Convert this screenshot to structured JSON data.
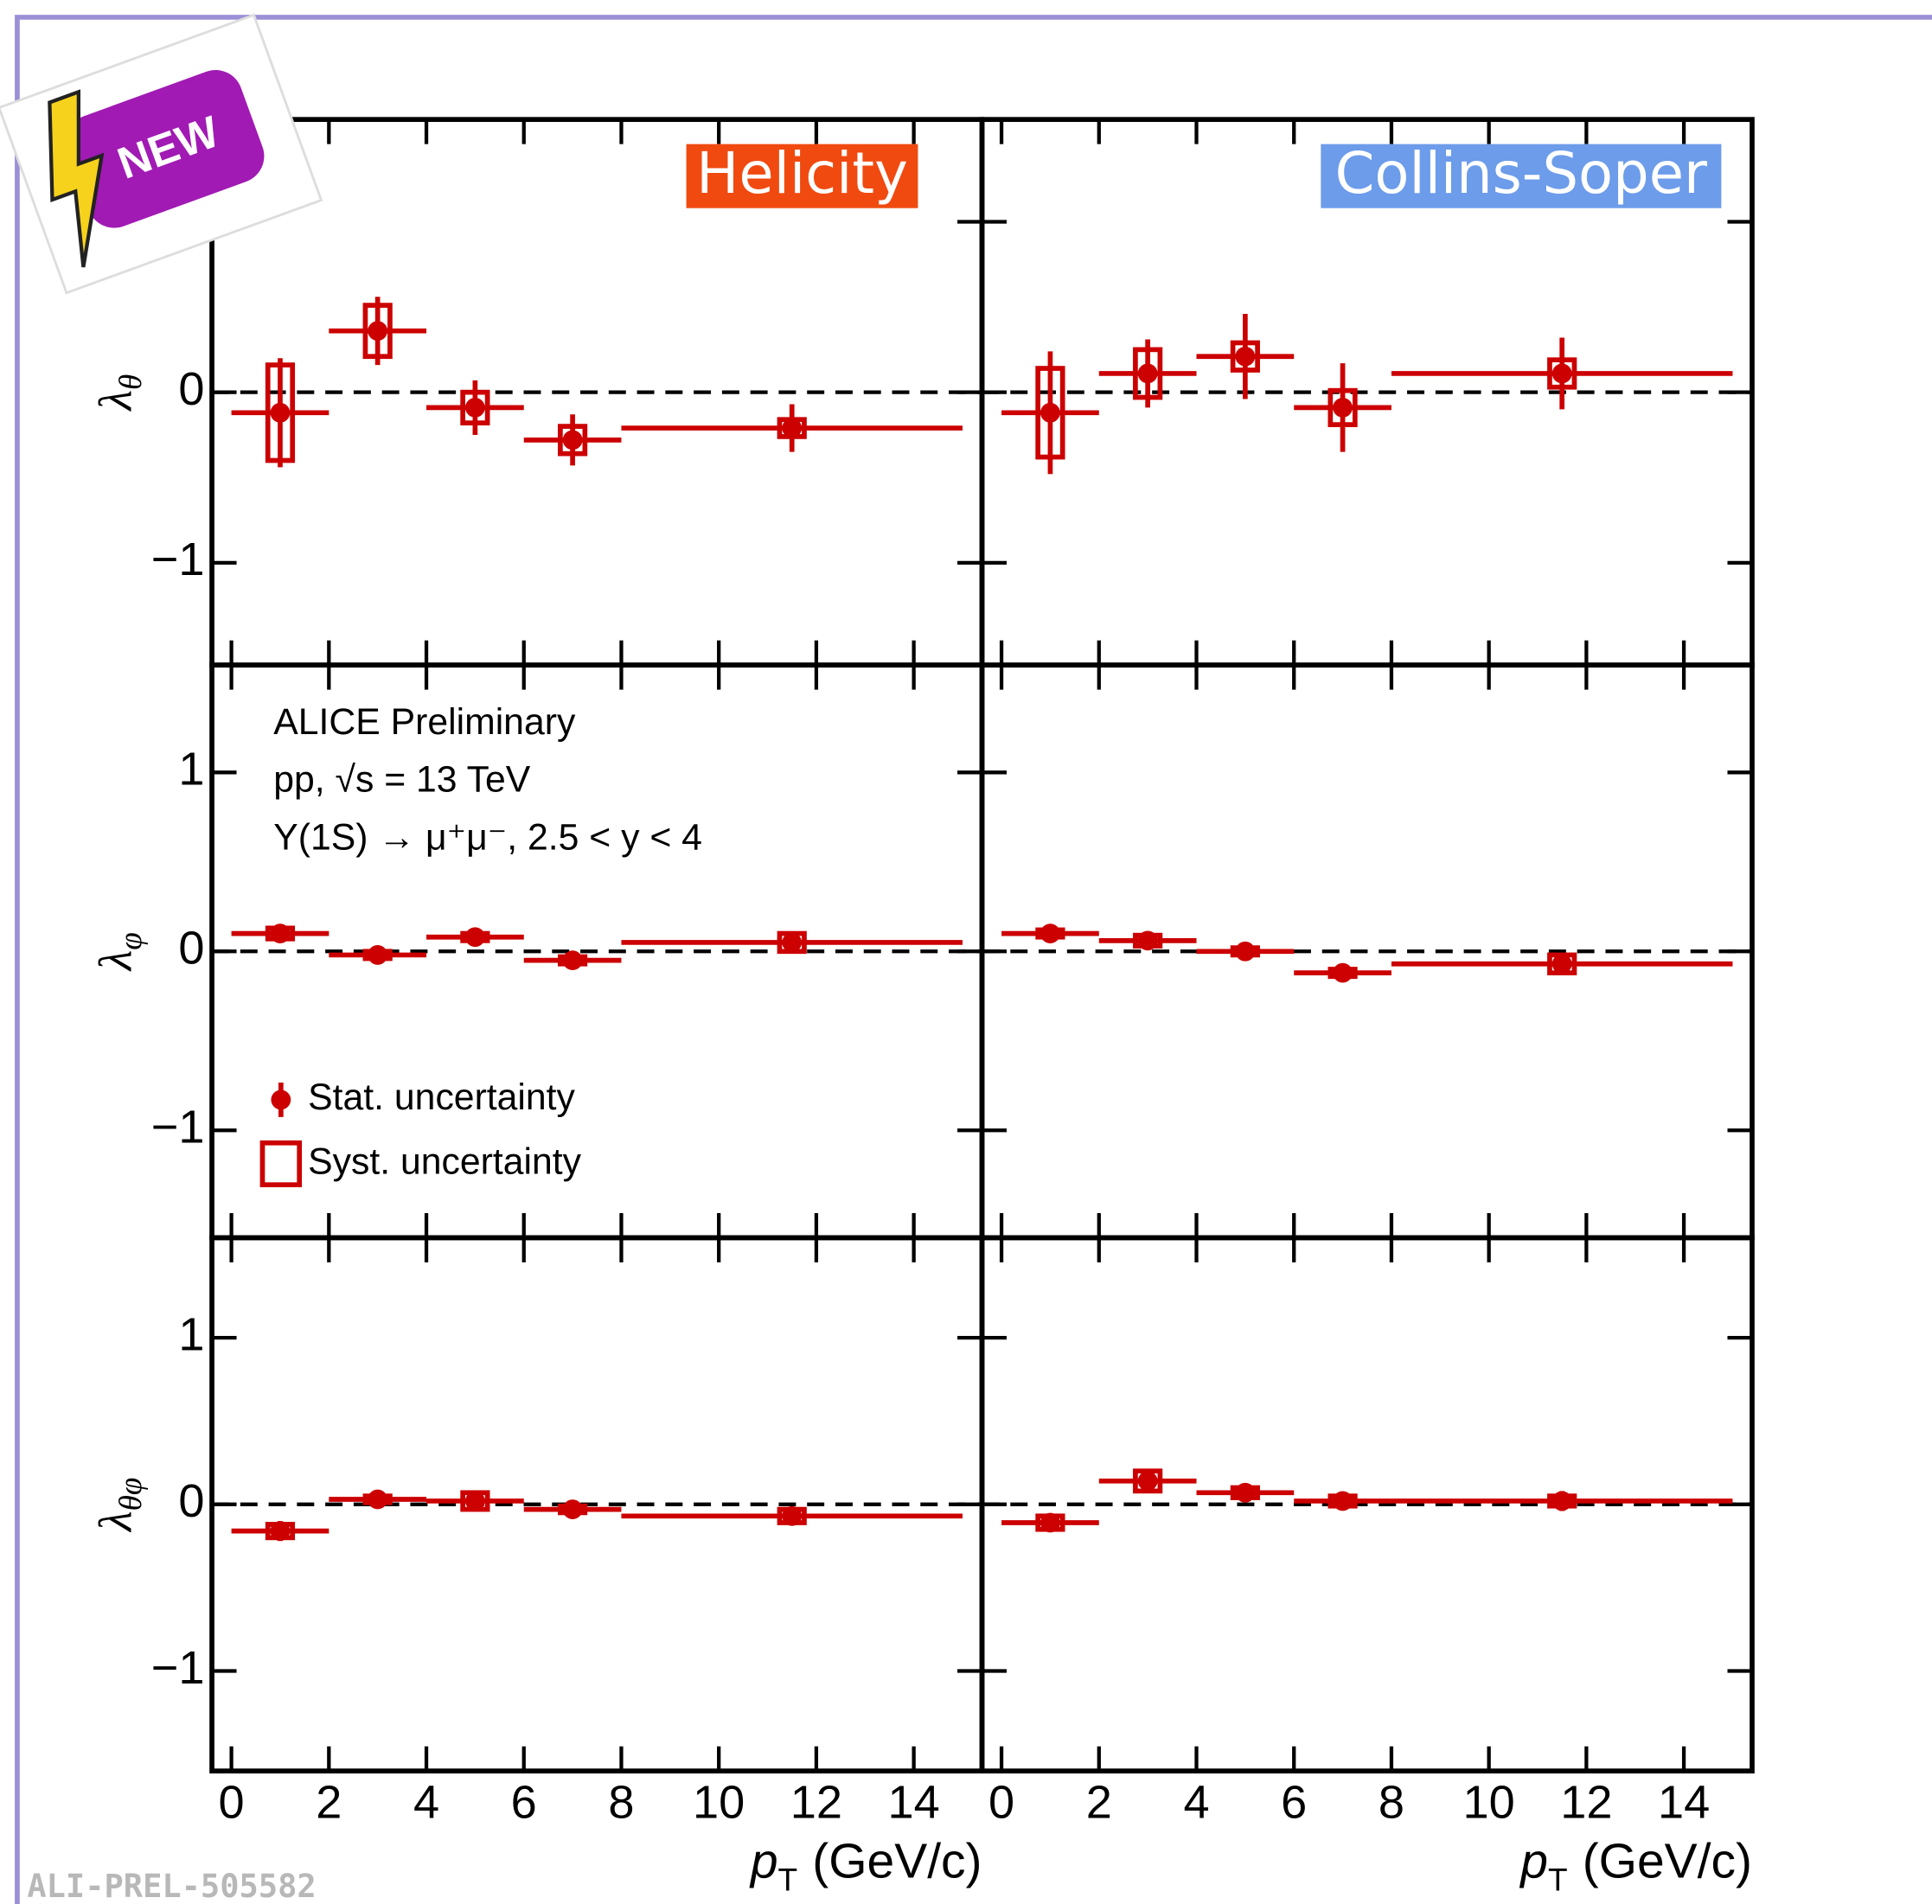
{
  "chart_data": [
    {
      "type": "errorbar",
      "frame": "Helicity",
      "ylabel": "λ",
      "ylabel_subscript": "θ",
      "x": [
        1,
        3,
        5,
        7,
        11.5
      ],
      "bins": [
        0,
        2,
        4,
        6,
        8,
        15
      ],
      "values": [
        -0.12,
        0.36,
        -0.09,
        -0.28,
        -0.21
      ],
      "stat_errors": [
        0.32,
        0.2,
        0.16,
        0.15,
        0.14
      ],
      "syst_errors": [
        0.28,
        0.15,
        0.09,
        0.08,
        0.05
      ],
      "color": "#cc0000",
      "reference_line": 0,
      "xlim": [
        -0.4,
        15.4
      ],
      "ylim": [
        -1.6,
        1.6
      ],
      "xticks": [
        0,
        2,
        4,
        6,
        8,
        10,
        12,
        14
      ],
      "yticks": [
        {
          "value": -1,
          "label": "−1"
        },
        0,
        1
      ],
      "xtick_labels": false,
      "ytick_labels": true
    },
    {
      "type": "errorbar",
      "frame": "Collins-Soper",
      "x": [
        1,
        3,
        5,
        7,
        11.5
      ],
      "bins": [
        0,
        2,
        4,
        6,
        8,
        15
      ],
      "values": [
        -0.12,
        0.11,
        0.21,
        -0.09,
        0.11
      ],
      "stat_errors": [
        0.36,
        0.2,
        0.25,
        0.26,
        0.21
      ],
      "syst_errors": [
        0.26,
        0.14,
        0.08,
        0.1,
        0.08
      ],
      "color": "#cc0000",
      "reference_line": 0,
      "xlim": [
        -0.4,
        15.4
      ],
      "ylim": [
        -1.6,
        1.6
      ],
      "xticks": [
        0,
        2,
        4,
        6,
        8,
        10,
        12,
        14
      ],
      "yticks": [
        -1,
        0,
        1
      ],
      "xtick_labels": false,
      "ytick_labels": false
    },
    {
      "type": "errorbar",
      "ylabel": "λ",
      "ylabel_subscript": "φ",
      "annotations": [
        "ALICE Preliminary",
        "pp, √s = 13 TeV",
        "Υ(1S) → μ⁺μ⁻, 2.5 < y < 4"
      ],
      "legend": [
        "Stat. uncertainty",
        "Syst. uncertainty"
      ],
      "x": [
        1,
        3,
        5,
        7,
        11.5
      ],
      "bins": [
        0,
        2,
        4,
        6,
        8,
        15
      ],
      "values": [
        0.1,
        -0.02,
        0.08,
        -0.05,
        0.05
      ],
      "stat_errors": [
        0.04,
        0.03,
        0.03,
        0.04,
        0.03
      ],
      "syst_errors": [
        0.03,
        0.02,
        0.02,
        0.02,
        0.05
      ],
      "color": "#cc0000",
      "reference_line": 0,
      "xlim": [
        -0.4,
        15.4
      ],
      "ylim": [
        -1.6,
        1.6
      ],
      "xticks": [
        0,
        2,
        4,
        6,
        8,
        10,
        12,
        14
      ],
      "yticks": [
        {
          "value": -1,
          "label": "−1"
        },
        0,
        1
      ],
      "xtick_labels": false,
      "ytick_labels": true
    },
    {
      "type": "errorbar",
      "x": [
        1,
        3,
        5,
        7,
        11.5
      ],
      "bins": [
        0,
        2,
        4,
        6,
        8,
        15
      ],
      "values": [
        0.1,
        0.06,
        0,
        -0.12,
        -0.07
      ],
      "stat_errors": [
        0.03,
        0.03,
        0.03,
        0.04,
        0.04
      ],
      "syst_errors": [
        0.02,
        0.03,
        0.02,
        0.02,
        0.05
      ],
      "color": "#cc0000",
      "reference_line": 0,
      "xlim": [
        -0.4,
        15.4
      ],
      "ylim": [
        -1.6,
        1.6
      ],
      "xticks": [
        0,
        2,
        4,
        6,
        8,
        10,
        12,
        14
      ],
      "yticks": [
        -1,
        0,
        1
      ],
      "xtick_labels": false,
      "ytick_labels": false
    },
    {
      "type": "errorbar",
      "ylabel": "λ",
      "ylabel_subscript": "θφ",
      "xlabel": {
        "symbol": "p",
        "subscript": "T",
        "unit": "(GeV/c)"
      },
      "x": [
        1,
        3,
        5,
        7,
        11.5
      ],
      "bins": [
        0,
        2,
        4,
        6,
        8,
        15
      ],
      "values": [
        -0.16,
        0.03,
        0.02,
        -0.03,
        -0.07
      ],
      "stat_errors": [
        0.06,
        0.03,
        0.03,
        0.04,
        0.04
      ],
      "syst_errors": [
        0.04,
        0.02,
        0.05,
        0.02,
        0.04
      ],
      "color": "#cc0000",
      "reference_line": 0,
      "xlim": [
        -0.4,
        15.4
      ],
      "ylim": [
        -1.6,
        1.6
      ],
      "xticks": [
        0,
        2,
        4,
        6,
        8,
        10,
        12,
        14
      ],
      "yticks": [
        {
          "value": -1,
          "label": "−1"
        },
        0,
        1
      ],
      "xtick_labels": true,
      "ytick_labels": true
    },
    {
      "type": "errorbar",
      "xlabel": {
        "symbol": "p",
        "subscript": "T",
        "unit": "(GeV/c)"
      },
      "x": [
        1,
        3,
        5,
        7,
        11.5
      ],
      "bins": [
        0,
        2,
        4,
        6,
        8,
        15
      ],
      "values": [
        -0.11,
        0.14,
        0.07,
        0.02,
        0.02
      ],
      "stat_errors": [
        0.05,
        0.05,
        0.04,
        0.05,
        0.06
      ],
      "syst_errors": [
        0.04,
        0.06,
        0.03,
        0.03,
        0.03
      ],
      "color": "#cc0000",
      "reference_line": 0,
      "xlim": [
        -0.4,
        15.4
      ],
      "ylim": [
        -1.6,
        1.6
      ],
      "xticks": [
        0,
        2,
        4,
        6,
        8,
        10,
        12,
        14
      ],
      "yticks": [
        -1,
        0,
        1
      ],
      "xtick_labels": true,
      "ytick_labels": false
    }
  ],
  "watermark": "ALI-PREL-505582",
  "badge": "NEW"
}
